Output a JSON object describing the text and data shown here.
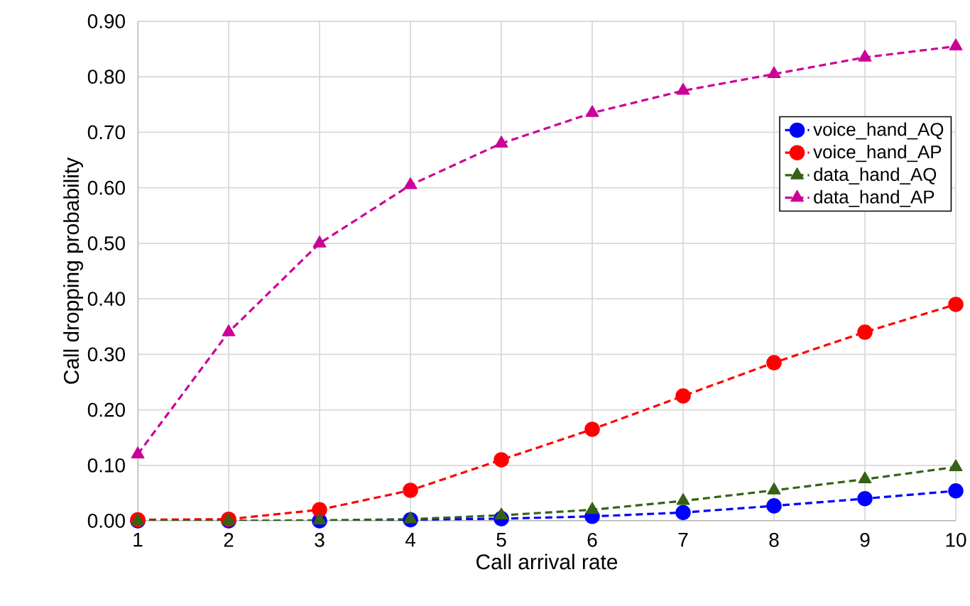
{
  "chart_data": {
    "type": "line",
    "xlabel": "Call arrival rate",
    "ylabel": "Call dropping  probability",
    "x": [
      1,
      2,
      3,
      4,
      5,
      6,
      7,
      8,
      9,
      10
    ],
    "xlim": [
      1,
      10
    ],
    "xticks": [
      1,
      2,
      3,
      4,
      5,
      6,
      7,
      8,
      9,
      10
    ],
    "ylim": [
      0,
      0.9
    ],
    "yticks": [
      {
        "value": 0,
        "label": "0.00"
      },
      {
        "value": 0.1,
        "label": "0.10"
      },
      {
        "value": 0.2,
        "label": "0.20"
      },
      {
        "value": 0.3,
        "label": "0.30"
      },
      {
        "value": 0.4,
        "label": "0.40"
      },
      {
        "value": 0.5,
        "label": "0.50"
      },
      {
        "value": 0.6,
        "label": "0.60"
      },
      {
        "value": 0.7,
        "label": "0.70"
      },
      {
        "value": 0.8,
        "label": "0.80"
      },
      {
        "value": 0.9,
        "label": "0.90"
      }
    ],
    "grid": true,
    "legend": "top right",
    "line_style": "dashed",
    "series": [
      {
        "name": "voice_hand_AQ",
        "color": "#0000ff",
        "marker": "circle",
        "values": [
          0.0,
          0.0,
          0.0,
          0.002,
          0.004,
          0.008,
          0.015,
          0.027,
          0.04,
          0.054
        ]
      },
      {
        "name": "voice_hand_AP",
        "color": "#ff0000",
        "marker": "circle",
        "values": [
          0.002,
          0.003,
          0.02,
          0.055,
          0.11,
          0.165,
          0.225,
          0.285,
          0.34,
          0.39
        ]
      },
      {
        "name": "data_hand_AQ",
        "color": "#376215",
        "marker": "triangle",
        "values": [
          0.0,
          0.0,
          0.001,
          0.003,
          0.01,
          0.02,
          0.036,
          0.055,
          0.075,
          0.097
        ]
      },
      {
        "name": "data_hand_AP",
        "color": "#cc0099",
        "marker": "triangle",
        "values": [
          0.12,
          0.34,
          0.5,
          0.605,
          0.68,
          0.735,
          0.775,
          0.805,
          0.835,
          0.855
        ]
      }
    ]
  }
}
